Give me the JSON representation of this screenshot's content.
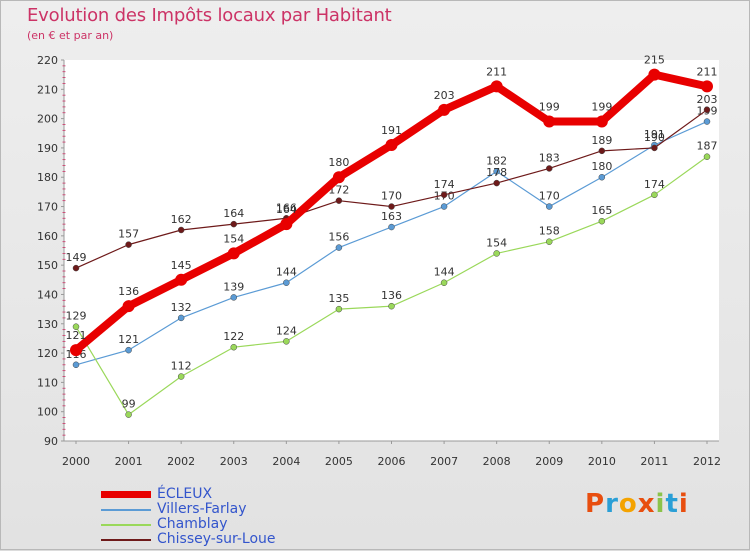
{
  "header": {
    "title": "Evolution des Impôts locaux par Habitant",
    "subtitle": "(en € et par an)"
  },
  "brand": {
    "text": "Proxiti",
    "colors": [
      "#e84e0f",
      "#2a9fd6",
      "#f4a300",
      "#e84e0f",
      "#8bc34a",
      "#2a9fd6",
      "#e84e0f"
    ]
  },
  "chart_data": {
    "type": "line",
    "title": "Evolution des Impôts locaux par Habitant",
    "ylabel": "(en € et par an)",
    "xlabel": "",
    "ylim": [
      90,
      220
    ],
    "yticks": [
      90,
      100,
      110,
      120,
      130,
      140,
      150,
      160,
      170,
      180,
      190,
      200,
      210,
      220
    ],
    "grid": false,
    "legend_position": "bottom-left",
    "categories": [
      "2000",
      "2001",
      "2002",
      "2003",
      "2004",
      "2005",
      "2006",
      "2007",
      "2008",
      "2009",
      "2010",
      "2011",
      "2012"
    ],
    "series": [
      {
        "name": "ÉCLEUX",
        "color": "#e80000",
        "values": [
          121,
          136,
          145,
          154,
          164,
          180,
          191,
          203,
          211,
          199,
          199,
          215,
          211
        ]
      },
      {
        "name": "Villers-Farlay",
        "color": "#5b9bd5",
        "values": [
          116,
          121,
          132,
          139,
          144,
          156,
          163,
          170,
          182,
          170,
          180,
          191,
          199
        ]
      },
      {
        "name": "Chamblay",
        "color": "#9ad85a",
        "values": [
          129,
          99,
          112,
          122,
          124,
          135,
          136,
          144,
          154,
          158,
          165,
          174,
          187
        ]
      },
      {
        "name": "Chissey-sur-Loue",
        "color": "#6e1a1a",
        "values": [
          149,
          157,
          162,
          164,
          166,
          172,
          170,
          174,
          178,
          183,
          189,
          190,
          203
        ]
      }
    ]
  }
}
